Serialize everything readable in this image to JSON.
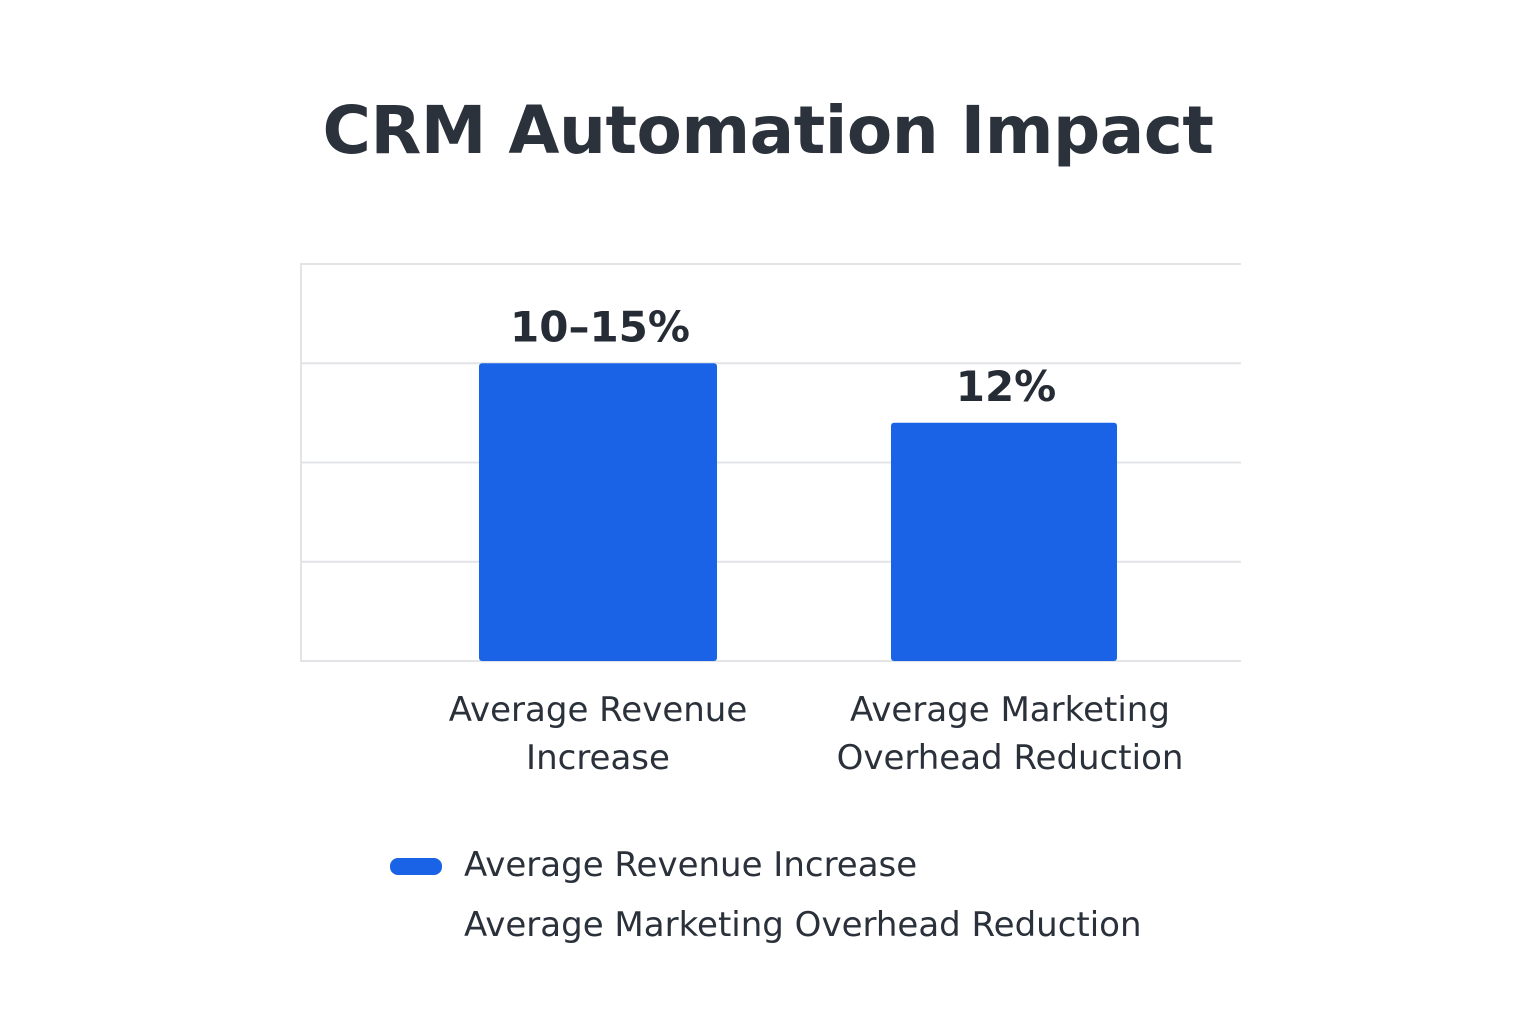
{
  "chart_data": {
    "type": "bar",
    "title": "CRM Automation Impact",
    "categories": [
      "Average Revenue Increase",
      "Average Marketing Overhead Reduction"
    ],
    "category_labels": [
      [
        "Average Revenue",
        "Increase"
      ],
      [
        "Average Marketing",
        "Overhead Reduction"
      ]
    ],
    "values": [
      15,
      12
    ],
    "data_labels": [
      "10–15%",
      "12%"
    ],
    "xlabel": "",
    "ylabel": "",
    "ylim": [
      0,
      20
    ],
    "grid": true,
    "legend": {
      "placement": "bottom",
      "entries": [
        "Average Revenue Increase",
        "Average Marketing Overhead Reduction"
      ]
    },
    "colors": {
      "bar": "#1b63e6",
      "grid": "#e2e4e7"
    }
  }
}
